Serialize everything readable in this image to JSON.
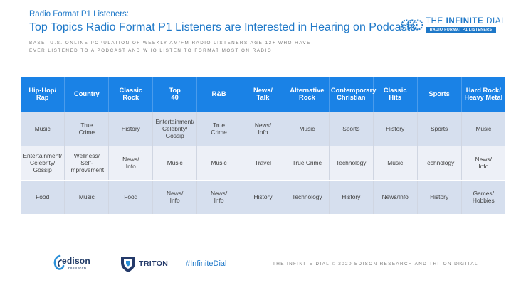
{
  "header": {
    "subtitle": "Radio Format P1 Listeners:",
    "title": "Top Topics Radio Format P1 Listeners are Interested in Hearing on Podcasts",
    "base": "BASE: U.S. ONLINE POPULATION OF WEEKLY AM/FM RADIO LISTENERS AGE 12+ WHO HAVE EVER LISTENED TO A PODCAST AND WHO LISTEN TO FORMAT MOST ON RADIO"
  },
  "brand": {
    "name_prefix": "THE ",
    "name_bold": "INFINITE",
    "name_suffix": " DIAL",
    "sub": "RADIO FORMAT P1 LISTENERS",
    "color": "#1e78c8"
  },
  "table": {
    "headers": [
      "Hip-Hop/\nRap",
      "Country",
      "Classic\nRock",
      "Top\n40",
      "R&B",
      "News/\nTalk",
      "Alternative\nRock",
      "Contemporary\nChristian",
      "Classic\nHits",
      "Sports",
      "Hard Rock/\nHeavy Metal"
    ],
    "rows": [
      [
        "Music",
        "True\nCrime",
        "History",
        "Entertainment/\nCelebrity/\nGossip",
        "True\nCrime",
        "News/\nInfo",
        "Music",
        "Sports",
        "History",
        "Sports",
        "Music"
      ],
      [
        "Entertainment/\nCelebrity/\nGossip",
        "Wellness/\nSelf-\nimprovement",
        "News/\nInfo",
        "Music",
        "Music",
        "Travel",
        "True Crime",
        "Technology",
        "Music",
        "Technology",
        "News/\nInfo"
      ],
      [
        "Food",
        "Music",
        "Food",
        "News/\nInfo",
        "News/\nInfo",
        "History",
        "Technology",
        "History",
        "News/Info",
        "History",
        "Games/\nHobbies"
      ]
    ],
    "header_color": "#1a82e6",
    "row_colors": [
      "#d6dfee",
      "#edf0f7"
    ]
  },
  "footer": {
    "edison_name": "edison",
    "edison_sub": "research",
    "triton_name": "TRITON",
    "hashtag": "#InfiniteDial",
    "copyright": "THE INFINITE DIAL  © 2020 EDISON RESEARCH AND TRITON DIGITAL"
  }
}
